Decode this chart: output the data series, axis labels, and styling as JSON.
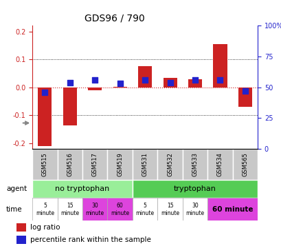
{
  "title": "GDS96 / 790",
  "samples": [
    "GSM515",
    "GSM516",
    "GSM517",
    "GSM519",
    "GSM531",
    "GSM532",
    "GSM533",
    "GSM534",
    "GSM565"
  ],
  "log_ratio": [
    -0.21,
    -0.135,
    -0.01,
    0.002,
    0.075,
    0.035,
    0.03,
    0.155,
    -0.07
  ],
  "percentile_rank": [
    46,
    54,
    56,
    53,
    56,
    54,
    56,
    56,
    47
  ],
  "ylim": [
    -0.22,
    0.22
  ],
  "right_ylim": [
    0,
    100
  ],
  "yticks_left": [
    -0.2,
    -0.1,
    0.0,
    0.1,
    0.2
  ],
  "yticks_right": [
    0,
    25,
    50,
    75,
    100
  ],
  "bar_color": "#cc2222",
  "dot_color": "#2222cc",
  "zero_line_color": "#cc2222",
  "grid_color": "#000000",
  "agent_no_tryp_color": "#99ee99",
  "agent_tryp_color": "#55cc55",
  "time_white_color": "#ffffff",
  "time_pink_color": "#dd44dd",
  "gsm_bg_color": "#c8c8c8",
  "bar_width": 0.55,
  "dot_size": 40,
  "bg_color": "#ffffff"
}
